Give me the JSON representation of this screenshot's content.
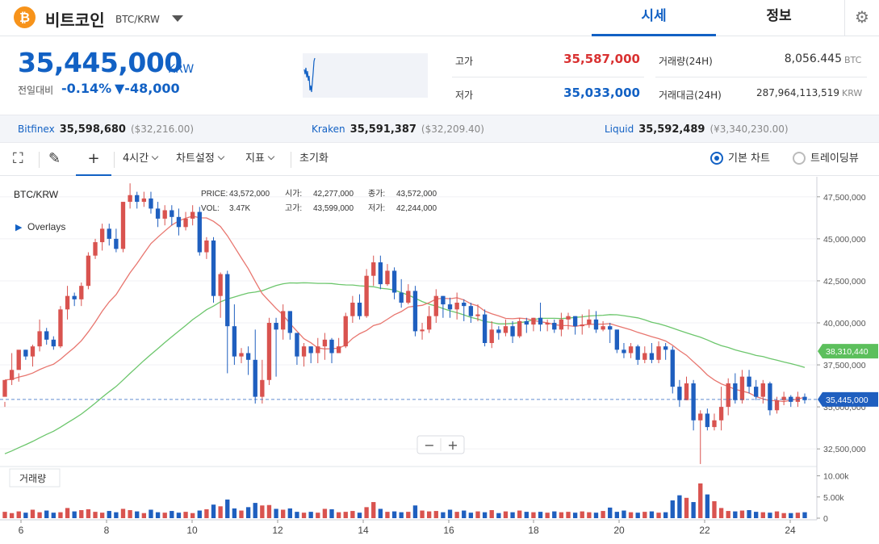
{
  "header": {
    "coin_logo": "₿",
    "coin_name": "비트코인",
    "pair": "BTC/KRW",
    "tabs": [
      {
        "label": "시세",
        "active": true
      },
      {
        "label": "정보",
        "active": false
      }
    ],
    "settings_icon": "gear-icon"
  },
  "summary": {
    "price": "35,445,000",
    "unit": "KRW",
    "change_label": "전일대비",
    "change_rate": "-0.14%",
    "change_abs": "▼-48,000",
    "high_label": "고가",
    "high": "35,587,000",
    "low_label": "저가",
    "low": "35,033,000",
    "volume_label": "거래량(24H)",
    "volume": "8,056.445",
    "volume_unit": "BTC",
    "amount_label": "거래대금(24H)",
    "amount": "287,964,113,519",
    "amount_unit": "KRW"
  },
  "exchanges": [
    {
      "name": "Bitfinex",
      "price": "35,598,680",
      "usd": "($32,216.00)"
    },
    {
      "name": "Kraken",
      "price": "35,591,387",
      "usd": "($32,209.40)"
    },
    {
      "name": "Liquid",
      "price": "35,592,489",
      "usd": "(¥3,340,230.00)"
    }
  ],
  "toolbar": {
    "fullscreen_icon": "fullscreen-icon",
    "draw_icon": "pencil-icon",
    "crosshair_icon": "crosshair-icon",
    "interval": "4시간",
    "chart_settings": "차트설정",
    "indicators": "지표",
    "reset": "초기화",
    "basic_chart": "기본 차트",
    "tradingview": "트레이딩뷰",
    "selected_mode": "기본 차트"
  },
  "legend": {
    "symbol": "BTC/KRW",
    "overlays": "Overlays",
    "price_label": "PRICE:",
    "price": "43,572,000",
    "vol_label": "VOL:",
    "vol": "3.47K",
    "open_label": "시가:",
    "open": "42,277,000",
    "high_label": "고가:",
    "high": "43,599,000",
    "close_label": "종가:",
    "close": "43,572,000",
    "low_label": "저가:",
    "low": "42,244,000"
  },
  "chart_data": {
    "type": "candlestick",
    "x_ticks": [
      "6",
      "8",
      "10",
      "12",
      "14",
      "16",
      "18",
      "20",
      "22",
      "24"
    ],
    "y_ticks": [
      "47,500,000",
      "45,000,000",
      "42,500,000",
      "40,000,000",
      "37,500,000",
      "35,000,000",
      "32,500,000"
    ],
    "y_range": [
      31500000,
      48500000
    ],
    "ma_green_last": "38,310,440",
    "last_price": "35,445,000",
    "up_color": "#d9534f",
    "down_color": "#1f5fbf",
    "ma_red_color": "#e8766f",
    "ma_green_color": "#6cc66c",
    "volume_label": "거래량",
    "volume_ticks": [
      "10.00k",
      "5.00k",
      "0"
    ],
    "volume_range": [
      0,
      12000
    ],
    "zoom_out": "−",
    "zoom_in": "+",
    "candles": [
      [
        35.6,
        36.6,
        35.3,
        35.0
      ],
      [
        36.6,
        37.2,
        36.3,
        38.2
      ],
      [
        37.2,
        38.4,
        36.5,
        37.0
      ],
      [
        38.4,
        38.0,
        37.8,
        38.4
      ],
      [
        38.0,
        38.6,
        37.4,
        38.7
      ],
      [
        38.6,
        39.5,
        38.3,
        40.2
      ],
      [
        39.5,
        39.0,
        38.7,
        39.7
      ],
      [
        39.0,
        38.6,
        38.4,
        39.2
      ],
      [
        38.6,
        40.8,
        38.5,
        41.0
      ],
      [
        40.8,
        41.6,
        40.2,
        42.2
      ],
      [
        41.6,
        41.4,
        41.0,
        41.8
      ],
      [
        41.4,
        42.2,
        41.0,
        42.4
      ],
      [
        42.2,
        44.0,
        42.0,
        44.2
      ],
      [
        44.0,
        44.8,
        43.8,
        45.0
      ],
      [
        44.8,
        45.6,
        44.3,
        45.9
      ],
      [
        45.6,
        45.0,
        44.6,
        45.9
      ],
      [
        45.0,
        44.4,
        44.2,
        45.6
      ],
      [
        44.4,
        47.2,
        44.2,
        47.2
      ],
      [
        47.2,
        47.6,
        46.8,
        48.3
      ],
      [
        47.6,
        47.2,
        46.8,
        47.8
      ],
      [
        47.2,
        47.4,
        46.9,
        47.8
      ],
      [
        47.4,
        46.8,
        46.5,
        47.8
      ],
      [
        46.8,
        46.2,
        45.7,
        47.2
      ],
      [
        46.2,
        46.7,
        45.8,
        47.0
      ],
      [
        46.7,
        46.3,
        45.8,
        47.0
      ],
      [
        46.3,
        45.7,
        45.2,
        46.8
      ],
      [
        45.7,
        46.2,
        45.5,
        46.6
      ],
      [
        46.2,
        46.6,
        45.8,
        47.0
      ],
      [
        46.6,
        44.2,
        44.0,
        46.9
      ],
      [
        44.2,
        44.9,
        43.8,
        45.1
      ],
      [
        44.9,
        41.6,
        41.2,
        45.1
      ],
      [
        41.6,
        42.9,
        40.3,
        43.0
      ],
      [
        42.9,
        39.8,
        37.0,
        43.1
      ],
      [
        39.8,
        38.0,
        37.5,
        41.1
      ],
      [
        38.0,
        38.2,
        37.6,
        38.5
      ],
      [
        38.2,
        37.8,
        36.9,
        38.6
      ],
      [
        37.8,
        35.6,
        35.2,
        39.6
      ],
      [
        35.6,
        36.6,
        35.2,
        37.8
      ],
      [
        36.6,
        40.0,
        36.3,
        40.3
      ],
      [
        40.0,
        39.6,
        36.8,
        40.3
      ],
      [
        39.6,
        40.7,
        39.0,
        41.1
      ],
      [
        40.7,
        39.4,
        39.0,
        40.7
      ],
      [
        39.4,
        38.0,
        37.5,
        39.4
      ],
      [
        38.0,
        38.6,
        37.4,
        38.8
      ],
      [
        38.6,
        38.2,
        37.6,
        38.6
      ],
      [
        38.2,
        38.6,
        37.6,
        39.1
      ],
      [
        38.6,
        39.0,
        37.8,
        39.4
      ],
      [
        39.0,
        38.2,
        37.6,
        39.1
      ],
      [
        38.2,
        38.6,
        38.2,
        39.1
      ],
      [
        38.6,
        40.4,
        38.5,
        40.6
      ],
      [
        40.4,
        41.2,
        40.0,
        41.6
      ],
      [
        41.2,
        40.4,
        40.2,
        41.7
      ],
      [
        40.4,
        42.8,
        40.3,
        43.2
      ],
      [
        42.8,
        43.6,
        42.2,
        44.0
      ],
      [
        43.6,
        42.3,
        42.0,
        44.0
      ],
      [
        42.3,
        43.1,
        42.2,
        43.5
      ],
      [
        43.1,
        41.8,
        41.4,
        43.3
      ],
      [
        41.8,
        41.2,
        40.9,
        42.6
      ],
      [
        41.2,
        41.9,
        41.1,
        42.3
      ],
      [
        41.9,
        39.5,
        39.2,
        42.2
      ],
      [
        39.5,
        39.6,
        39.0,
        40.0
      ],
      [
        39.6,
        40.4,
        39.4,
        41.0
      ],
      [
        40.4,
        41.6,
        40.0,
        42.0
      ],
      [
        41.6,
        41.1,
        40.3,
        41.6
      ],
      [
        41.1,
        40.8,
        40.3,
        41.5
      ],
      [
        40.8,
        41.2,
        40.2,
        41.8
      ],
      [
        41.2,
        41.0,
        40.1,
        41.4
      ],
      [
        41.0,
        40.4,
        40.0,
        41.2
      ],
      [
        40.4,
        40.5,
        40.1,
        41.1
      ],
      [
        40.5,
        38.8,
        38.6,
        40.8
      ],
      [
        38.8,
        39.6,
        38.5,
        40.1
      ],
      [
        39.6,
        39.4,
        39.0,
        39.8
      ],
      [
        39.4,
        39.8,
        39.2,
        40.2
      ],
      [
        39.8,
        39.2,
        38.8,
        40.1
      ],
      [
        39.2,
        40.1,
        39.1,
        40.3
      ],
      [
        40.1,
        39.9,
        39.4,
        40.3
      ],
      [
        39.9,
        40.3,
        39.5,
        40.3
      ],
      [
        40.3,
        39.9,
        39.5,
        41.2
      ],
      [
        39.9,
        40.0,
        39.5,
        40.2
      ],
      [
        40.0,
        39.6,
        39.4,
        40.2
      ],
      [
        39.6,
        40.2,
        39.2,
        40.6
      ],
      [
        40.2,
        40.4,
        39.6,
        40.6
      ],
      [
        40.4,
        39.8,
        39.3,
        40.4
      ],
      [
        39.8,
        39.9,
        39.3,
        40.5
      ],
      [
        39.9,
        40.2,
        39.7,
        40.8
      ],
      [
        40.2,
        39.6,
        39.4,
        40.7
      ],
      [
        39.6,
        39.8,
        39.5,
        40.1
      ],
      [
        39.8,
        39.6,
        38.8,
        40.0
      ],
      [
        39.6,
        38.4,
        38.2,
        39.6
      ],
      [
        38.4,
        38.2,
        37.9,
        38.8
      ],
      [
        38.2,
        38.6,
        37.9,
        38.8
      ],
      [
        38.6,
        37.8,
        37.5,
        38.7
      ],
      [
        37.8,
        38.2,
        37.6,
        38.6
      ],
      [
        38.2,
        37.8,
        37.6,
        38.8
      ],
      [
        37.8,
        38.6,
        37.6,
        38.9
      ],
      [
        38.6,
        38.4,
        37.8,
        38.8
      ],
      [
        38.4,
        36.2,
        35.8,
        38.6
      ],
      [
        36.2,
        35.4,
        35.0,
        36.6
      ],
      [
        35.4,
        36.4,
        35.4,
        36.8
      ],
      [
        36.4,
        34.2,
        33.6,
        36.6
      ],
      [
        34.2,
        34.6,
        31.6,
        34.8
      ],
      [
        34.6,
        33.8,
        33.6,
        34.9
      ],
      [
        33.8,
        34.2,
        33.6,
        34.6
      ],
      [
        34.2,
        35.0,
        33.6,
        36.2
      ],
      [
        35.0,
        36.4,
        34.5,
        36.7
      ],
      [
        36.4,
        35.4,
        35.2,
        37.0
      ],
      [
        35.4,
        36.8,
        35.2,
        37.2
      ],
      [
        36.8,
        36.2,
        35.8,
        37.2
      ],
      [
        36.2,
        35.6,
        35.4,
        36.6
      ],
      [
        35.6,
        36.4,
        35.2,
        36.6
      ],
      [
        36.4,
        34.8,
        34.5,
        36.5
      ],
      [
        34.8,
        35.4,
        34.6,
        35.6
      ],
      [
        35.4,
        35.6,
        35.1,
        35.9
      ],
      [
        35.6,
        35.3,
        35.0,
        35.7
      ],
      [
        35.3,
        35.6,
        35.0,
        35.9
      ],
      [
        35.6,
        35.4,
        35.2,
        35.8
      ]
    ],
    "volumes": [
      1.5,
      1.2,
      1.6,
      1.3,
      2.0,
      1.4,
      1.8,
      1.3,
      1.4,
      2.4,
      1.6,
      1.9,
      2.1,
      1.5,
      1.3,
      1.7,
      1.4,
      2.2,
      1.9,
      1.6,
      1.2,
      2.0,
      1.4,
      1.3,
      1.7,
      1.3,
      1.5,
      1.2,
      1.8,
      2.1,
      3.2,
      2.8,
      4.4,
      2.3,
      1.8,
      2.6,
      3.6,
      3.0,
      3.1,
      2.2,
      2.0,
      2.3,
      1.5,
      1.3,
      1.5,
      1.3,
      2.2,
      2.1,
      1.4,
      1.5,
      1.7,
      1.3,
      2.6,
      3.8,
      2.2,
      1.5,
      1.6,
      1.4,
      1.5,
      3.0,
      1.8,
      1.6,
      1.7,
      1.4,
      2.0,
      1.5,
      1.8,
      1.3,
      1.6,
      1.4,
      1.9,
      1.2,
      1.6,
      1.4,
      1.8,
      1.5,
      1.4,
      1.5,
      1.3,
      1.6,
      1.4,
      1.5,
      1.3,
      1.6,
      1.4,
      1.3,
      1.7,
      2.5,
      1.5,
      1.8,
      1.4,
      1.3,
      1.5,
      1.6,
      1.3,
      1.4,
      4.2,
      5.4,
      4.8,
      3.8,
      8.2,
      5.6,
      4.0,
      2.4,
      1.7,
      1.6,
      1.8,
      1.9,
      1.5,
      1.4,
      1.3,
      1.6,
      1.2,
      1.2,
      1.3,
      1.4
    ]
  }
}
